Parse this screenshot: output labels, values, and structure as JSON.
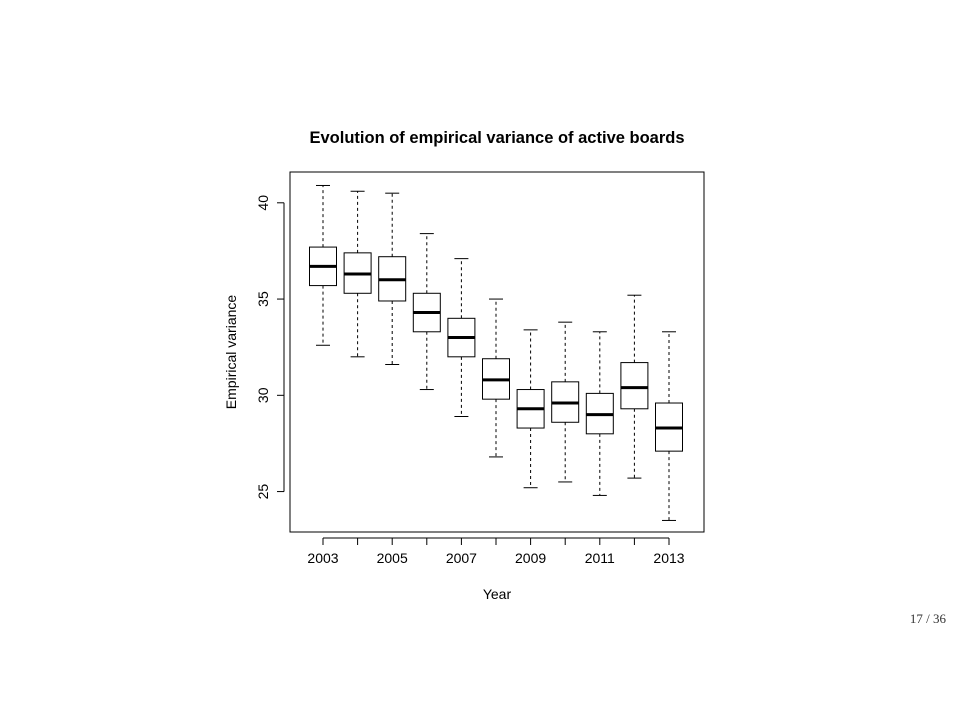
{
  "slide": {
    "page_counter": "17 / 36"
  },
  "chart_data": {
    "type": "boxplot",
    "title": "Evolution of empirical variance of active boards",
    "xlabel": "Year",
    "ylabel": "Empirical variance",
    "categories": [
      "2003",
      "2004",
      "2005",
      "2006",
      "2007",
      "2008",
      "2009",
      "2010",
      "2011",
      "2012",
      "2013"
    ],
    "x_tick_labels": [
      "2003",
      "2005",
      "2007",
      "2009",
      "2011",
      "2013"
    ],
    "y_ticks": [
      25,
      30,
      35,
      40
    ],
    "y_tick_labels": [
      "25",
      "30",
      "35",
      "40"
    ],
    "ylim": [
      22.9,
      41.6
    ],
    "grid": false,
    "legend": "none",
    "boxes": [
      {
        "year": "2003",
        "whisker_low": 32.6,
        "q1": 35.7,
        "median": 36.7,
        "q3": 37.7,
        "whisker_high": 40.9
      },
      {
        "year": "2004",
        "whisker_low": 32.0,
        "q1": 35.3,
        "median": 36.3,
        "q3": 37.4,
        "whisker_high": 40.6
      },
      {
        "year": "2005",
        "whisker_low": 31.6,
        "q1": 34.9,
        "median": 36.0,
        "q3": 37.2,
        "whisker_high": 40.5
      },
      {
        "year": "2006",
        "whisker_low": 30.3,
        "q1": 33.3,
        "median": 34.3,
        "q3": 35.3,
        "whisker_high": 38.4
      },
      {
        "year": "2007",
        "whisker_low": 28.9,
        "q1": 32.0,
        "median": 33.0,
        "q3": 34.0,
        "whisker_high": 37.1
      },
      {
        "year": "2008",
        "whisker_low": 26.8,
        "q1": 29.8,
        "median": 30.8,
        "q3": 31.9,
        "whisker_high": 35.0
      },
      {
        "year": "2009",
        "whisker_low": 25.2,
        "q1": 28.3,
        "median": 29.3,
        "q3": 30.3,
        "whisker_high": 33.4
      },
      {
        "year": "2010",
        "whisker_low": 25.5,
        "q1": 28.6,
        "median": 29.6,
        "q3": 30.7,
        "whisker_high": 33.8
      },
      {
        "year": "2011",
        "whisker_low": 24.8,
        "q1": 28.0,
        "median": 29.0,
        "q3": 30.1,
        "whisker_high": 33.3
      },
      {
        "year": "2012",
        "whisker_low": 25.7,
        "q1": 29.3,
        "median": 30.4,
        "q3": 31.7,
        "whisker_high": 35.2
      },
      {
        "year": "2013",
        "whisker_low": 23.5,
        "q1": 27.1,
        "median": 28.3,
        "q3": 29.6,
        "whisker_high": 33.3
      }
    ]
  }
}
